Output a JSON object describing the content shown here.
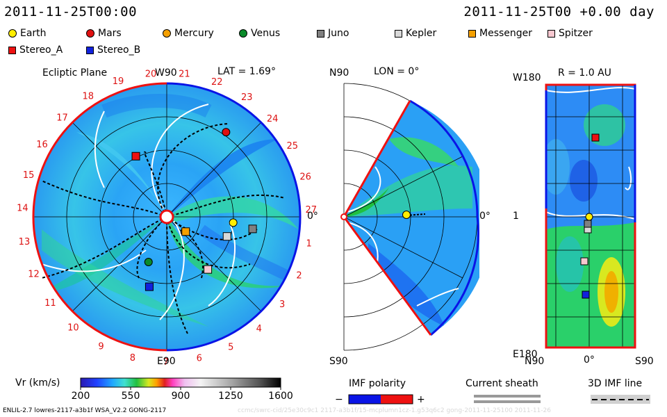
{
  "header": {
    "datetime_left": "2011-11-25T00:00",
    "datetime_right": "2011-11-25T00 +0.00 day"
  },
  "legend": {
    "items": [
      {
        "label": "Earth",
        "color": "#ffee00",
        "shape": "circle"
      },
      {
        "label": "Mars",
        "color": "#e01010",
        "shape": "circle"
      },
      {
        "label": "Mercury",
        "color": "#f5a000",
        "shape": "circle"
      },
      {
        "label": "Venus",
        "color": "#0a8a2a",
        "shape": "circle"
      },
      {
        "label": "Juno",
        "color": "#808080",
        "shape": "square"
      },
      {
        "label": "Kepler",
        "color": "#d8d8d8",
        "shape": "square"
      },
      {
        "label": "Messenger",
        "color": "#f5a000",
        "shape": "square"
      },
      {
        "label": "Spitzer",
        "color": "#f7c8d0",
        "shape": "square"
      },
      {
        "label": "Stereo_A",
        "color": "#ee1111",
        "shape": "square"
      },
      {
        "label": "Stereo_B",
        "color": "#1122dd",
        "shape": "square"
      }
    ]
  },
  "panels": {
    "ecliptic": {
      "title": "Ecliptic Plane",
      "lat_label": "LAT = 1.69°",
      "top_label": "W90",
      "bottom_label": "E90",
      "right_label": "0°",
      "ticks": [
        "19",
        "20",
        "21",
        "22",
        "23",
        "24",
        "25",
        "26",
        "27",
        "1",
        "2",
        "3",
        "4",
        "5",
        "6",
        "7",
        "8",
        "9",
        "10",
        "11",
        "12",
        "13",
        "14",
        "15",
        "16",
        "17",
        "18"
      ]
    },
    "meridional": {
      "title": "LON = 0°",
      "top_label": "N90",
      "bottom_label": "S90",
      "right_label": "0°"
    },
    "r_map": {
      "title": "R = 1.0 AU",
      "top_label": "W180",
      "mid_label": "1",
      "bottom_label": "E180",
      "x_left": "N90",
      "x_mid": "0°",
      "x_right": "S90"
    }
  },
  "colorbar": {
    "label": "Vr (km/s)",
    "ticks": [
      "200",
      "550",
      "900",
      "1250",
      "1600"
    ]
  },
  "imf": {
    "label": "IMF polarity",
    "minus": "−",
    "plus": "+",
    "neg_color": "#0a14e6",
    "pos_color": "#ee1111"
  },
  "current_sheath": {
    "label": "Current sheath"
  },
  "imf_line": {
    "label": "3D IMF line"
  },
  "footer": {
    "model": "ENLIL-2.7 lowres-2117-a3b1f WSA_V2.2 GONG-2117",
    "watermark": "ccmc/swrc-cid/25e30c9c1 2117-a3b1f/15-mcplumn1cz-1.g53q6c2 gong-2011-11-25100   2011-11-26"
  },
  "chart_data": {
    "type": "heatmap",
    "title": "Vr (km/s)",
    "colorbar_range": [
      200,
      1600
    ],
    "colorbar_ticks": [
      200,
      550,
      900,
      1250,
      1600
    ],
    "ecliptic_markers": [
      {
        "name": "Earth",
        "ring_au": 1.0,
        "angle_deg": -5
      },
      {
        "name": "Mars",
        "ring_au": 1.55,
        "angle_deg": 55
      },
      {
        "name": "Mercury",
        "ring_au": 0.35,
        "angle_deg": -40
      },
      {
        "name": "Venus",
        "ring_au": 0.73,
        "angle_deg": -112
      },
      {
        "name": "Juno",
        "ring_au": 1.3,
        "angle_deg": -8
      },
      {
        "name": "Kepler",
        "ring_au": 0.95,
        "angle_deg": -18
      },
      {
        "name": "Messenger",
        "ring_au": 0.36,
        "angle_deg": -38
      },
      {
        "name": "Spitzer",
        "ring_au": 1.0,
        "angle_deg": -52
      },
      {
        "name": "Stereo_A",
        "ring_au": 1.02,
        "angle_deg": 117
      },
      {
        "name": "Stereo_B",
        "ring_au": 1.08,
        "angle_deg": -104
      }
    ]
  }
}
